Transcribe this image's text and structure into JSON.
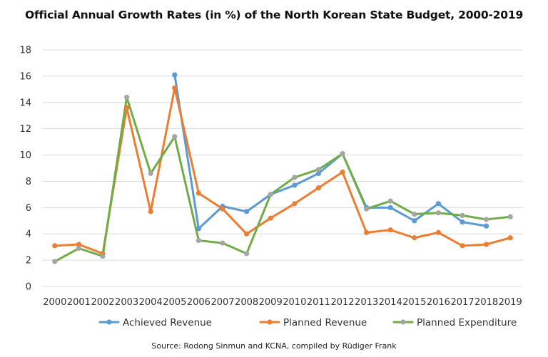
{
  "title": "Official Annual Growth Rates (in %) of the North Korean State Budget, 2000-2019",
  "source": "Source: Rodong Sinmun and KCNA, compiled by Rüdiger Frank",
  "chart_data": {
    "type": "line",
    "title": "Official Annual Growth Rates (in %) of the North Korean State Budget, 2000-2019",
    "xlabel": "",
    "ylabel": "",
    "ylim": [
      0,
      18
    ],
    "yticks": [
      "0",
      "2",
      "4",
      "6",
      "8",
      "10",
      "12",
      "14",
      "16",
      "18"
    ],
    "grid": true,
    "legend_position": "bottom",
    "categories": [
      "2000",
      "2001",
      "2002",
      "2003",
      "2004",
      "2005",
      "2006",
      "2007",
      "2008",
      "2009",
      "2010",
      "2011",
      "2012",
      "2013",
      "2014",
      "2015",
      "2016",
      "2017",
      "2018",
      "2019"
    ],
    "series": [
      {
        "name": "Achieved Revenue",
        "color": "#5b9bd5",
        "values": [
          null,
          null,
          null,
          null,
          null,
          16.1,
          4.4,
          6.1,
          5.7,
          7.0,
          7.7,
          8.6,
          10.1,
          6.0,
          6.0,
          5.0,
          6.3,
          4.9,
          4.6,
          null
        ]
      },
      {
        "name": "Planned Revenue",
        "color": "#ed7d31",
        "values": [
          3.1,
          3.2,
          2.5,
          13.6,
          5.7,
          15.1,
          7.1,
          5.9,
          4.0,
          5.2,
          6.3,
          7.5,
          8.7,
          4.1,
          4.3,
          3.7,
          4.1,
          3.1,
          3.2,
          3.7
        ]
      },
      {
        "name": "Planned Expenditure",
        "color": "#70ad47",
        "marker_color": "#a5a5a5",
        "values": [
          1.9,
          2.9,
          2.3,
          14.4,
          8.6,
          11.4,
          3.5,
          3.3,
          2.5,
          7.0,
          8.3,
          8.9,
          10.1,
          5.9,
          6.5,
          5.5,
          5.6,
          5.4,
          5.1,
          5.3
        ]
      }
    ]
  }
}
